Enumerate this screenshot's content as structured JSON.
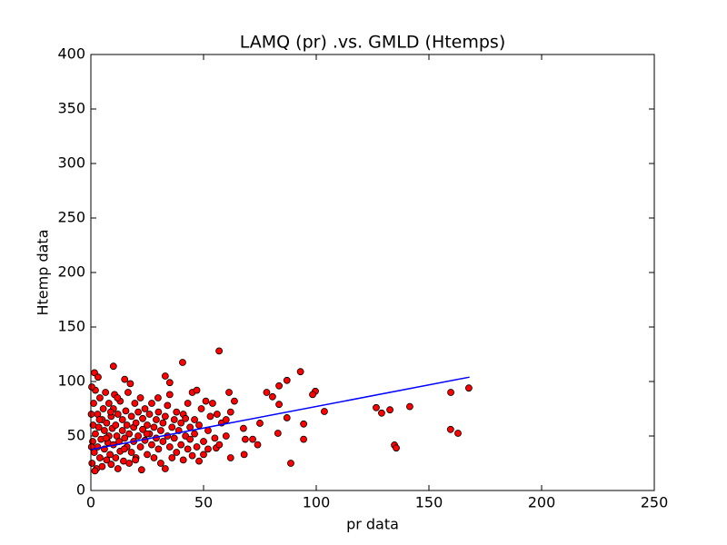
{
  "chart_data": {
    "type": "scatter",
    "title": "LAMQ (pr) .vs. GMLD (Htemps)",
    "x_label": "pr data",
    "y_label": "Htemp data",
    "xlim": [
      0,
      250
    ],
    "ylim": [
      0,
      400
    ],
    "xticks": [
      0,
      50,
      100,
      150,
      200,
      250
    ],
    "yticks": [
      0,
      50,
      100,
      150,
      200,
      250,
      300,
      350,
      400
    ],
    "points": {
      "color": "#ff0000",
      "edgecolor": "#000000",
      "x": [
        56.9,
        40.7,
        10,
        93,
        1.6,
        3.2,
        87,
        99.6,
        98.4,
        83.5,
        80.6,
        78,
        126.6,
        129,
        132.7,
        141.5,
        159.7,
        167.7,
        159.6,
        162.9,
        134.7,
        135.5,
        88.7,
        103.6,
        94.4,
        94.4,
        87,
        83,
        83.5,
        75,
        74,
        71.8,
        68.5,
        68,
        67.7,
        63.7,
        62,
        61.3,
        55.6,
        0.5,
        0.8,
        1,
        1.2,
        1.5,
        2,
        2,
        2.5,
        3,
        3,
        3.5,
        4,
        4,
        4.5,
        5,
        5,
        5.5,
        6,
        6,
        6.5,
        7,
        7,
        7.5,
        8,
        8,
        8.5,
        9,
        9,
        9.5,
        10,
        10,
        10.5,
        11,
        11,
        11.5,
        12,
        12,
        12.5,
        13,
        13,
        14,
        14,
        14.5,
        15,
        15,
        15.5,
        16,
        16,
        16.5,
        17,
        17,
        17.5,
        18,
        18,
        19,
        19,
        19.5,
        20,
        20,
        21,
        21,
        22,
        22,
        22.5,
        23,
        23,
        24,
        24,
        25,
        25,
        26,
        26,
        27,
        27,
        28,
        28,
        29,
        29,
        30,
        30,
        31,
        31,
        32,
        32,
        33,
        33,
        33,
        34,
        34,
        35,
        35,
        35,
        36,
        36,
        37,
        37,
        38,
        38,
        39,
        40,
        40,
        41,
        41,
        42,
        42,
        43,
        43,
        44,
        44,
        45,
        45,
        46,
        46,
        47,
        47,
        48,
        48,
        49,
        50,
        50,
        51,
        52,
        52,
        53,
        54,
        55,
        56,
        57,
        58,
        60,
        60,
        62,
        0.2,
        0.3,
        0.4,
        1.8,
        3.8,
        6.8,
        8.8,
        11.8,
        14.8,
        19.8,
        24.8,
        29.8
      ],
      "y": [
        128,
        117.5,
        114,
        109,
        108,
        104,
        101,
        91,
        88,
        96,
        86,
        90,
        76,
        71,
        74,
        77,
        90,
        94,
        56,
        52.5,
        41.7,
        39,
        25,
        72.5,
        61,
        47,
        66.7,
        52.5,
        79,
        61.7,
        42,
        47,
        47,
        33,
        57,
        82,
        30,
        90,
        39,
        25,
        45,
        60,
        80,
        35,
        52,
        92,
        20,
        70,
        40,
        58,
        30,
        85,
        47,
        65,
        22,
        75,
        38,
        55,
        90,
        28,
        62,
        44,
        80,
        50,
        33,
        68,
        24,
        57,
        42,
        75,
        88,
        30,
        60,
        50,
        20,
        70,
        45,
        82,
        36,
        55,
        65,
        27,
        102,
        48,
        73,
        40,
        60,
        90,
        25,
        52,
        98,
        68,
        35,
        58,
        45,
        80,
        30,
        62,
        72,
        50,
        40,
        85,
        19,
        56,
        66,
        46,
        75,
        33,
        60,
        52,
        70,
        42,
        80,
        58,
        30,
        65,
        48,
        38,
        72,
        55,
        25,
        62,
        45,
        20,
        68,
        105,
        50,
        78,
        40,
        99,
        88,
        58,
        30,
        65,
        48,
        72,
        35,
        55,
        62,
        42,
        70,
        28,
        50,
        66,
        38,
        80,
        58,
        47,
        90,
        32,
        65,
        52,
        92,
        40,
        60,
        27,
        75,
        45,
        33,
        82,
        55,
        38,
        68,
        80,
        48,
        70,
        42,
        62,
        50,
        65,
        72,
        70,
        40,
        95,
        18,
        65,
        48,
        72,
        85,
        38,
        28,
        52,
        85
      ]
    },
    "fit_line": {
      "color": "#0000ff",
      "x": [
        0,
        168
      ],
      "y": [
        37.5,
        104
      ]
    }
  }
}
